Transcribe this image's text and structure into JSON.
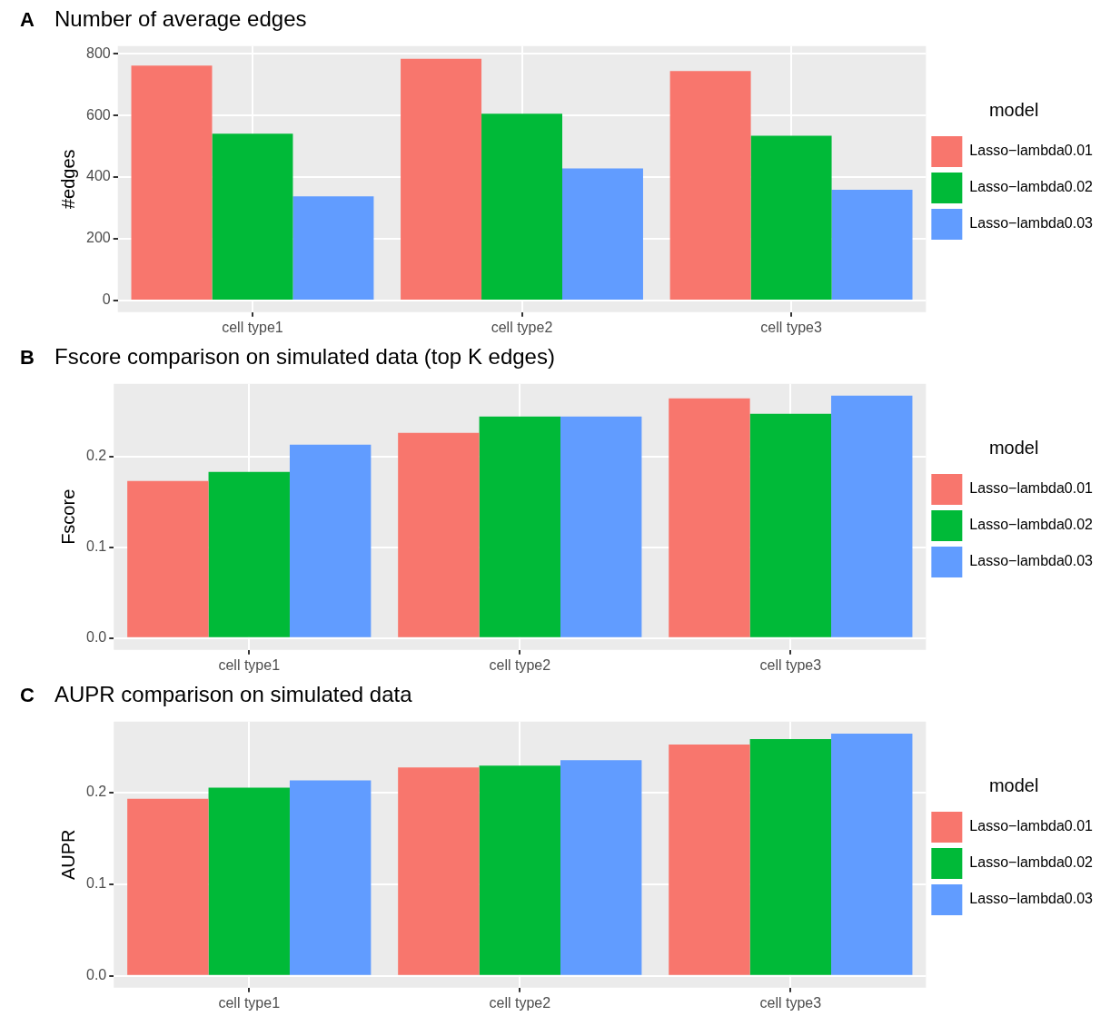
{
  "chart_data": [
    {
      "type": "bar",
      "title": "Number of average edges",
      "annotations": [
        "A"
      ],
      "ylabel": "#edges",
      "legend_title": "model",
      "legend": "right",
      "grid": true,
      "categories": [
        "cell type1",
        "cell type2",
        "cell type3"
      ],
      "ylim": [
        -38,
        825
      ],
      "yticks": [
        0,
        200,
        400,
        600,
        800
      ],
      "series": [
        {
          "name": "Lasso−lambda0.01",
          "color": "#f8766d",
          "values": [
            762,
            784,
            744
          ]
        },
        {
          "name": "Lasso−lambda0.02",
          "color": "#00ba38",
          "values": [
            541,
            606,
            534
          ]
        },
        {
          "name": "Lasso−lambda0.03",
          "color": "#619cff",
          "values": [
            338,
            428,
            359
          ]
        }
      ]
    },
    {
      "type": "bar",
      "title": "Fscore comparison on simulated data (top K edges)",
      "annotations": [
        "B"
      ],
      "ylabel": "Fscore",
      "legend_title": "model",
      "legend": "right",
      "grid": true,
      "categories": [
        "cell type1",
        "cell type2",
        "cell type3"
      ],
      "ylim": [
        -0.013,
        0.28
      ],
      "yticks": [
        {
          "value": 0,
          "label": "0.0"
        },
        0.1,
        0.2
      ],
      "series": [
        {
          "name": "Lasso−lambda0.01",
          "color": "#f8766d",
          "values": [
            0.173,
            0.226,
            0.264
          ]
        },
        {
          "name": "Lasso−lambda0.02",
          "color": "#00ba38",
          "values": [
            0.183,
            0.244,
            0.247
          ]
        },
        {
          "name": "Lasso−lambda0.03",
          "color": "#619cff",
          "values": [
            0.213,
            0.244,
            0.267
          ]
        }
      ]
    },
    {
      "type": "bar",
      "title": "AUPR comparison on simulated data",
      "annotations": [
        "C"
      ],
      "ylabel": "AUPR",
      "legend_title": "model",
      "legend": "right",
      "grid": true,
      "categories": [
        "cell type1",
        "cell type2",
        "cell type3"
      ],
      "ylim": [
        -0.013,
        0.277
      ],
      "yticks": [
        {
          "value": 0,
          "label": "0.0"
        },
        0.1,
        0.2
      ],
      "series": [
        {
          "name": "Lasso−lambda0.01",
          "color": "#f8766d",
          "values": [
            0.193,
            0.227,
            0.252
          ]
        },
        {
          "name": "Lasso−lambda0.02",
          "color": "#00ba38",
          "values": [
            0.205,
            0.229,
            0.258
          ]
        },
        {
          "name": "Lasso−lambda0.03",
          "color": "#619cff",
          "values": [
            0.213,
            0.235,
            0.264
          ]
        }
      ]
    }
  ]
}
